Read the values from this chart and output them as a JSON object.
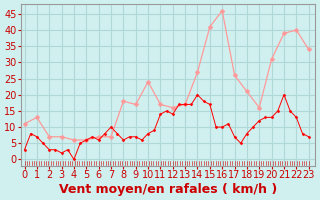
{
  "xlabel": "Vent moyen/en rafales ( km/h )",
  "bg_color": "#d0f0f0",
  "grid_color": "#b0d8d8",
  "line_color_mean": "#ff0000",
  "line_color_gust": "#ff9999",
  "marker_color_mean": "#ff0000",
  "marker_color_gust": "#ff9999",
  "ylim": [
    -2,
    48
  ],
  "yticks": [
    0,
    5,
    10,
    15,
    20,
    25,
    30,
    35,
    40,
    45
  ],
  "xticks": [
    0,
    1,
    2,
    3,
    4,
    5,
    6,
    7,
    8,
    9,
    10,
    11,
    12,
    13,
    14,
    15,
    16,
    17,
    18,
    19,
    20,
    21,
    22,
    23
  ],
  "mean_x": [
    0,
    0.5,
    1,
    1.5,
    2,
    2.5,
    3,
    3.5,
    4,
    4.5,
    5,
    5.5,
    6,
    6.5,
    7,
    7.5,
    8,
    8.5,
    9,
    9.5,
    10,
    10.5,
    11,
    11.5,
    12,
    12.5,
    13,
    13.5,
    14,
    14.5,
    15,
    15.5,
    16,
    16.5,
    17,
    17.5,
    18,
    18.5,
    19,
    19.5,
    20,
    20.5,
    21,
    21.5,
    22,
    22.5,
    23
  ],
  "mean_y": [
    3,
    8,
    7,
    5,
    3,
    3,
    2,
    3,
    0,
    5,
    6,
    7,
    6,
    8,
    10,
    8,
    6,
    7,
    7,
    6,
    8,
    9,
    14,
    15,
    14,
    17,
    17,
    17,
    20,
    18,
    17,
    10,
    10,
    11,
    7,
    5,
    8,
    10,
    12,
    13,
    13,
    15,
    20,
    15,
    13,
    8,
    7
  ],
  "gust_x": [
    0,
    1,
    2,
    3,
    4,
    5,
    6,
    7,
    8,
    9,
    10,
    11,
    12,
    13,
    14,
    15,
    16,
    17,
    18,
    19,
    20,
    21,
    22,
    23
  ],
  "gust_y": [
    11,
    13,
    7,
    7,
    6,
    6,
    7,
    7,
    18,
    17,
    24,
    17,
    16,
    17,
    27,
    41,
    46,
    26,
    21,
    16,
    31,
    39,
    40,
    34
  ],
  "wind_dir_y": -1.5,
  "xlabel_fontsize": 9,
  "tick_fontsize": 7,
  "ylabel_fontsize": 7
}
